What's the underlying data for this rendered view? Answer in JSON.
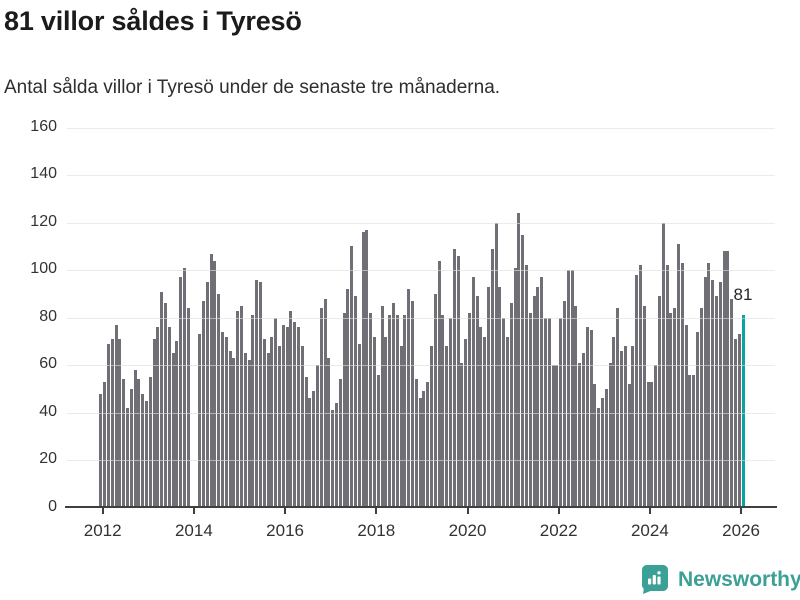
{
  "header": {
    "title": "81 villor såldes i Tyresö",
    "subtitle": "Antal sålda villor i Tyresö under de senaste tre månaderna."
  },
  "chart_data": {
    "type": "bar",
    "title": "81 villor såldes i Tyresö",
    "subtitle": "Antal sålda villor i Tyresö under de senaste tre månaderna.",
    "x_start": "2012-01",
    "x_end": "2026-02",
    "x_tick_years": [
      2012,
      2014,
      2016,
      2018,
      2020,
      2022,
      2024,
      2026
    ],
    "y_ticks": [
      0,
      20,
      40,
      60,
      80,
      100,
      120,
      140,
      160
    ],
    "ylim": [
      0,
      160
    ],
    "grid": true,
    "legend": "none",
    "bar_color": "#6f6f75",
    "highlight_color": "#0aa3a3",
    "axis_color": "#3f3f3f",
    "values": [
      48,
      53,
      69,
      71,
      77,
      71,
      54,
      42,
      50,
      58,
      54,
      48,
      45,
      55,
      71,
      76,
      91,
      86,
      76,
      65,
      70,
      97,
      101,
      84,
      null,
      null,
      73,
      87,
      95,
      107,
      104,
      90,
      74,
      72,
      66,
      63,
      83,
      85,
      65,
      62,
      81,
      96,
      95,
      71,
      65,
      72,
      80,
      68,
      77,
      76,
      83,
      78,
      76,
      68,
      55,
      46,
      49,
      60,
      84,
      88,
      63,
      41,
      44,
      54,
      82,
      92,
      110,
      89,
      69,
      116,
      117,
      82,
      72,
      56,
      85,
      72,
      81,
      86,
      81,
      68,
      81,
      92,
      87,
      54,
      46,
      49,
      53,
      68,
      90,
      104,
      81,
      68,
      80,
      109,
      106,
      61,
      71,
      82,
      97,
      89,
      76,
      72,
      93,
      109,
      120,
      93,
      80,
      72,
      86,
      101,
      124,
      115,
      102,
      82,
      89,
      93,
      97,
      80,
      80,
      60,
      60,
      80,
      87,
      100,
      100,
      85,
      61,
      65,
      76,
      75,
      52,
      42,
      46,
      50,
      61,
      72,
      84,
      66,
      68,
      52,
      68,
      98,
      102,
      85,
      53,
      53,
      60,
      89,
      120,
      102,
      82,
      84,
      111,
      103,
      77,
      56,
      56,
      74,
      84,
      97,
      103,
      96,
      89,
      95,
      108,
      108,
      88,
      71,
      73,
      81
    ],
    "highlight": {
      "index": 169,
      "value": 81,
      "label": "81"
    }
  },
  "footer": {
    "brand": "Newsworthy"
  }
}
